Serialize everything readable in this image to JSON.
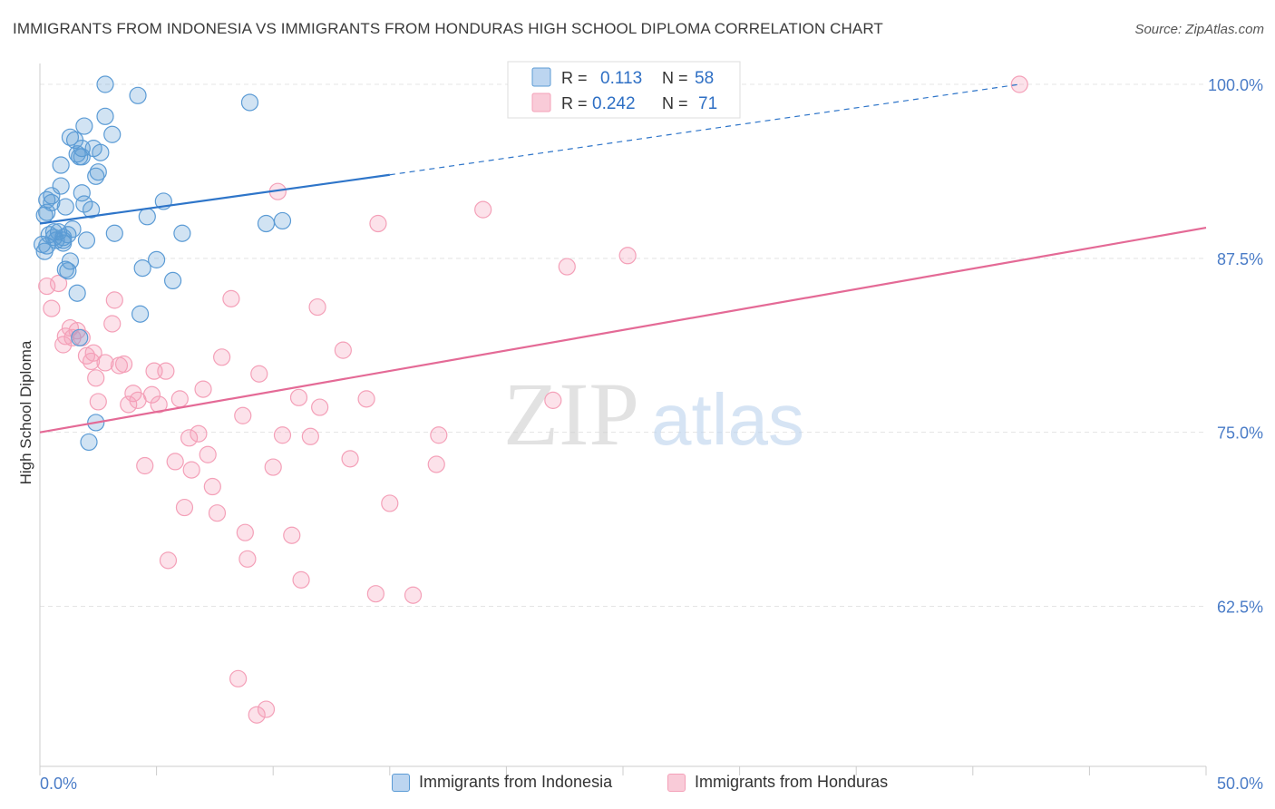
{
  "title": "IMMIGRANTS FROM INDONESIA VS IMMIGRANTS FROM HONDURAS HIGH SCHOOL DIPLOMA CORRELATION CHART",
  "source": "Source: ZipAtlas.com",
  "watermark": {
    "zip": "ZIP",
    "atlas": "atlas"
  },
  "colors": {
    "indonesia": "#5b9bd5",
    "indonesia_line": "#2e75c9",
    "honduras": "#f4a0b8",
    "honduras_line": "#e46a96",
    "tick_label": "#4a7cc7"
  },
  "legend": {
    "r_label": "R =",
    "n_label": "N =",
    "rows": [
      {
        "r": "0.113",
        "n": "58"
      },
      {
        "r": "0.242",
        "n": "71"
      }
    ]
  },
  "chart_data": {
    "type": "scatter",
    "xlabel": "",
    "ylabel": "High School Diploma",
    "xlim": [
      0,
      50
    ],
    "ylim": [
      51,
      101.5
    ],
    "x_tick_labels": [
      "0.0%",
      "50.0%"
    ],
    "y_ticks": [
      {
        "value": 100,
        "label": "100.0%"
      },
      {
        "value": 87.5,
        "label": "87.5%"
      },
      {
        "value": 75,
        "label": "75.0%"
      },
      {
        "value": 62.5,
        "label": "62.5%"
      }
    ],
    "legend_position": "top-center",
    "series": [
      {
        "name": "Immigrants from Indonesia",
        "trend": {
          "x0": 0,
          "y0": 90.0,
          "x1": 15,
          "y1": 93.5,
          "x_dash_end": 42,
          "y_dash_end": 100.0
        },
        "points": [
          [
            0.1,
            88.5
          ],
          [
            0.2,
            88.0
          ],
          [
            0.3,
            90.8
          ],
          [
            0.3,
            91.7
          ],
          [
            0.4,
            89.2
          ],
          [
            0.5,
            92.0
          ],
          [
            0.5,
            91.5
          ],
          [
            0.6,
            89.0
          ],
          [
            0.7,
            88.8
          ],
          [
            0.8,
            89.4
          ],
          [
            0.9,
            94.2
          ],
          [
            0.9,
            92.7
          ],
          [
            1.0,
            89.0
          ],
          [
            1.0,
            88.6
          ],
          [
            1.1,
            86.7
          ],
          [
            1.1,
            91.2
          ],
          [
            1.2,
            89.2
          ],
          [
            1.2,
            86.6
          ],
          [
            1.3,
            87.3
          ],
          [
            1.3,
            96.2
          ],
          [
            1.4,
            89.6
          ],
          [
            1.5,
            96.0
          ],
          [
            1.6,
            95.0
          ],
          [
            1.6,
            85.0
          ],
          [
            1.7,
            94.8
          ],
          [
            1.8,
            92.2
          ],
          [
            1.8,
            95.4
          ],
          [
            1.9,
            97.0
          ],
          [
            1.9,
            91.4
          ],
          [
            2.0,
            88.8
          ],
          [
            2.1,
            74.3
          ],
          [
            2.2,
            91.0
          ],
          [
            2.3,
            95.4
          ],
          [
            2.4,
            93.4
          ],
          [
            2.5,
            93.7
          ],
          [
            2.6,
            95.1
          ],
          [
            2.8,
            97.7
          ],
          [
            2.8,
            100.0
          ],
          [
            3.1,
            96.4
          ],
          [
            3.2,
            89.3
          ],
          [
            4.2,
            99.2
          ],
          [
            4.3,
            83.5
          ],
          [
            4.4,
            86.8
          ],
          [
            4.6,
            90.5
          ],
          [
            5.0,
            87.4
          ],
          [
            5.3,
            91.6
          ],
          [
            5.7,
            85.9
          ],
          [
            6.1,
            89.3
          ],
          [
            9.0,
            98.7
          ],
          [
            9.7,
            90.0
          ],
          [
            10.4,
            90.2
          ],
          [
            2.4,
            75.7
          ],
          [
            1.7,
            81.8
          ],
          [
            0.2,
            90.6
          ],
          [
            0.6,
            89.4
          ],
          [
            1.0,
            88.8
          ],
          [
            0.3,
            88.4
          ],
          [
            1.8,
            94.8
          ]
        ]
      },
      {
        "name": "Immigrants from Honduras",
        "trend": {
          "x0": 0,
          "y0": 75.0,
          "x1": 50,
          "y1": 89.7
        },
        "points": [
          [
            0.3,
            85.5
          ],
          [
            0.5,
            83.9
          ],
          [
            0.8,
            85.7
          ],
          [
            1.0,
            81.3
          ],
          [
            1.1,
            81.9
          ],
          [
            1.3,
            82.5
          ],
          [
            1.4,
            81.8
          ],
          [
            1.6,
            82.3
          ],
          [
            1.8,
            81.8
          ],
          [
            2.0,
            80.5
          ],
          [
            2.2,
            80.1
          ],
          [
            2.3,
            80.7
          ],
          [
            2.5,
            77.2
          ],
          [
            2.8,
            80.0
          ],
          [
            3.1,
            82.8
          ],
          [
            3.2,
            84.5
          ],
          [
            3.4,
            79.8
          ],
          [
            3.6,
            79.9
          ],
          [
            3.8,
            77.0
          ],
          [
            4.0,
            77.8
          ],
          [
            4.2,
            77.3
          ],
          [
            4.5,
            72.6
          ],
          [
            4.8,
            77.7
          ],
          [
            4.9,
            79.4
          ],
          [
            5.1,
            77.0
          ],
          [
            5.4,
            79.4
          ],
          [
            5.5,
            65.8
          ],
          [
            5.8,
            72.9
          ],
          [
            6.0,
            77.4
          ],
          [
            6.2,
            69.6
          ],
          [
            6.4,
            74.6
          ],
          [
            6.5,
            72.3
          ],
          [
            6.8,
            74.9
          ],
          [
            7.0,
            78.1
          ],
          [
            7.2,
            73.4
          ],
          [
            7.4,
            71.1
          ],
          [
            7.6,
            69.2
          ],
          [
            7.8,
            80.4
          ],
          [
            8.2,
            84.6
          ],
          [
            8.5,
            57.3
          ],
          [
            8.7,
            76.2
          ],
          [
            8.8,
            67.8
          ],
          [
            8.9,
            65.9
          ],
          [
            9.3,
            54.7
          ],
          [
            9.4,
            79.2
          ],
          [
            9.7,
            55.1
          ],
          [
            10.0,
            72.5
          ],
          [
            10.2,
            92.3
          ],
          [
            10.4,
            74.8
          ],
          [
            10.8,
            67.6
          ],
          [
            11.1,
            77.5
          ],
          [
            11.2,
            64.4
          ],
          [
            11.6,
            74.7
          ],
          [
            11.9,
            84.0
          ],
          [
            12.0,
            76.8
          ],
          [
            13.0,
            80.9
          ],
          [
            13.3,
            73.1
          ],
          [
            14.0,
            77.4
          ],
          [
            14.4,
            63.4
          ],
          [
            14.5,
            90.0
          ],
          [
            15.0,
            69.9
          ],
          [
            16.0,
            63.3
          ],
          [
            17.0,
            72.7
          ],
          [
            17.1,
            74.8
          ],
          [
            19.0,
            91.0
          ],
          [
            22.0,
            77.3
          ],
          [
            22.6,
            86.9
          ],
          [
            25.2,
            87.7
          ],
          [
            28.2,
            100.0
          ],
          [
            42.0,
            100.0
          ],
          [
            2.4,
            78.9
          ]
        ]
      }
    ]
  },
  "bottom_legend": [
    {
      "label": "Immigrants from Indonesia"
    },
    {
      "label": "Immigrants from Honduras"
    }
  ]
}
